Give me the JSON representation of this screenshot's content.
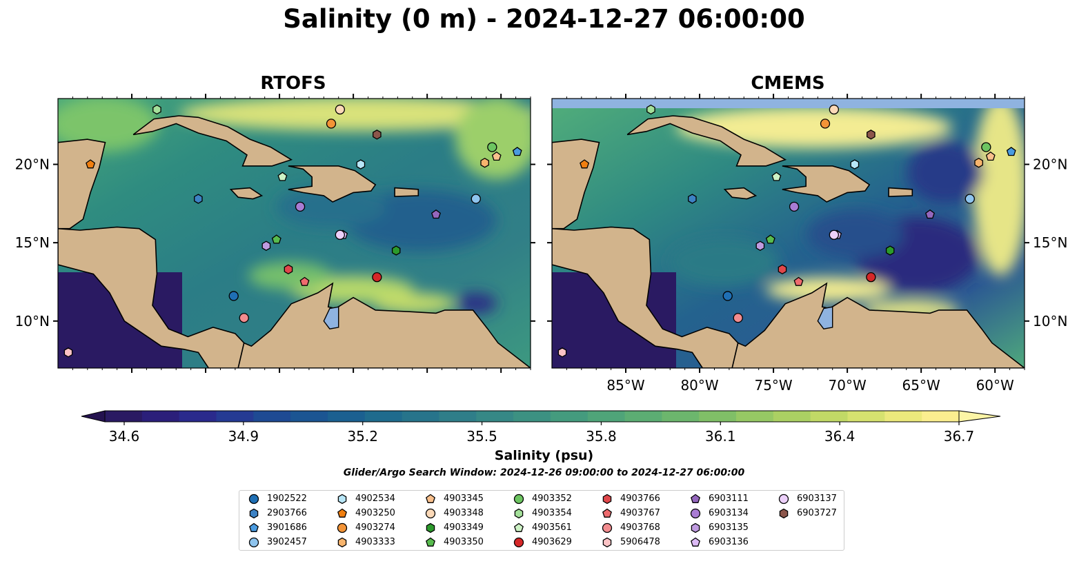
{
  "title": "Salinity (0 m) - 2024-12-27 06:00:00",
  "panels": [
    {
      "title": "RTOFS"
    },
    {
      "title": "CMEMS"
    }
  ],
  "map": {
    "lon_range": [
      -90,
      -58
    ],
    "lat_range": [
      7,
      24.2
    ],
    "lon_ticks": [
      "85°W",
      "80°W",
      "75°W",
      "70°W",
      "65°W",
      "60°W"
    ],
    "lat_ticks": [
      "20°N",
      "15°N",
      "10°N"
    ],
    "land_color": "#d2b48c",
    "lake_color": "#8fb3e0"
  },
  "colorbar": {
    "label": "Salinity (psu)",
    "min": 34.6,
    "max": 36.7,
    "ticks": [
      "34.6",
      "34.9",
      "35.2",
      "35.5",
      "35.8",
      "36.1",
      "36.4",
      "36.7"
    ],
    "colormap": "haline",
    "extend": "both"
  },
  "search_window": "Glider/Argo Search Window: 2024-12-26 09:00:00 to 2024-12-27 06:00:00",
  "floats": [
    {
      "id": "1902522",
      "marker": "circle",
      "color": "#1f6fb4",
      "lon": -78.1,
      "lat": 11.6
    },
    {
      "id": "2903766",
      "marker": "hexagon",
      "color": "#3d82c4",
      "lon": -80.5,
      "lat": 17.8
    },
    {
      "id": "3901686",
      "marker": "pentagon",
      "color": "#4a9be0",
      "lon": -58.9,
      "lat": 20.8
    },
    {
      "id": "3902457",
      "marker": "circle",
      "color": "#8ec4ee",
      "lon": -61.7,
      "lat": 17.8
    },
    {
      "id": "4902534",
      "marker": "hexagon",
      "color": "#b8e6f7",
      "lon": -69.5,
      "lat": 20.0
    },
    {
      "id": "4903250",
      "marker": "pentagon",
      "color": "#f07f10",
      "lon": -87.8,
      "lat": 20.0
    },
    {
      "id": "4903274",
      "marker": "circle",
      "color": "#f39437",
      "lon": -71.5,
      "lat": 22.6
    },
    {
      "id": "4903333",
      "marker": "hexagon",
      "color": "#f7b46d",
      "lon": -61.1,
      "lat": 20.1
    },
    {
      "id": "4903345",
      "marker": "pentagon",
      "color": "#f9c08c",
      "lon": -60.3,
      "lat": 20.5
    },
    {
      "id": "4903348",
      "marker": "circle",
      "color": "#fbd9b8",
      "lon": -70.9,
      "lat": 23.5
    },
    {
      "id": "4903349",
      "marker": "hexagon",
      "color": "#2c9a2c",
      "lon": -67.1,
      "lat": 14.5
    },
    {
      "id": "4903350",
      "marker": "pentagon",
      "color": "#58bb4e",
      "lon": -75.2,
      "lat": 15.2
    },
    {
      "id": "4903352",
      "marker": "circle",
      "color": "#6dc561",
      "lon": -60.6,
      "lat": 21.1
    },
    {
      "id": "4903354",
      "marker": "hexagon",
      "color": "#a4e09a",
      "lon": -83.3,
      "lat": 23.5
    },
    {
      "id": "4903561",
      "marker": "pentagon",
      "color": "#cdf2c5",
      "lon": -74.8,
      "lat": 19.2
    },
    {
      "id": "4903629",
      "marker": "circle",
      "color": "#d62728",
      "lon": -68.4,
      "lat": 12.8
    },
    {
      "id": "4903766",
      "marker": "hexagon",
      "color": "#e0474b",
      "lon": -74.4,
      "lat": 13.3
    },
    {
      "id": "4903767",
      "marker": "pentagon",
      "color": "#ee6b6e",
      "lon": -73.3,
      "lat": 12.5
    },
    {
      "id": "4903768",
      "marker": "circle",
      "color": "#f28c8f",
      "lon": -77.4,
      "lat": 10.2
    },
    {
      "id": "5906478",
      "marker": "hexagon",
      "color": "#fbc3c5",
      "lon": -89.3,
      "lat": 8.0
    },
    {
      "id": "6903111",
      "marker": "pentagon",
      "color": "#9467bd",
      "lon": -64.4,
      "lat": 16.8
    },
    {
      "id": "6903134",
      "marker": "circle",
      "color": "#a97cd3",
      "lon": -73.6,
      "lat": 17.3
    },
    {
      "id": "6903135",
      "marker": "hexagon",
      "color": "#bf9be0",
      "lon": -75.9,
      "lat": 14.8
    },
    {
      "id": "6903136",
      "marker": "pentagon",
      "color": "#dcbaf5",
      "lon": -70.7,
      "lat": 15.5
    },
    {
      "id": "6903137",
      "marker": "circle",
      "color": "#ecd0fa",
      "lon": -70.9,
      "lat": 15.5
    },
    {
      "id": "6903727",
      "marker": "hexagon",
      "color": "#8c564b",
      "lon": -68.4,
      "lat": 21.9
    }
  ]
}
